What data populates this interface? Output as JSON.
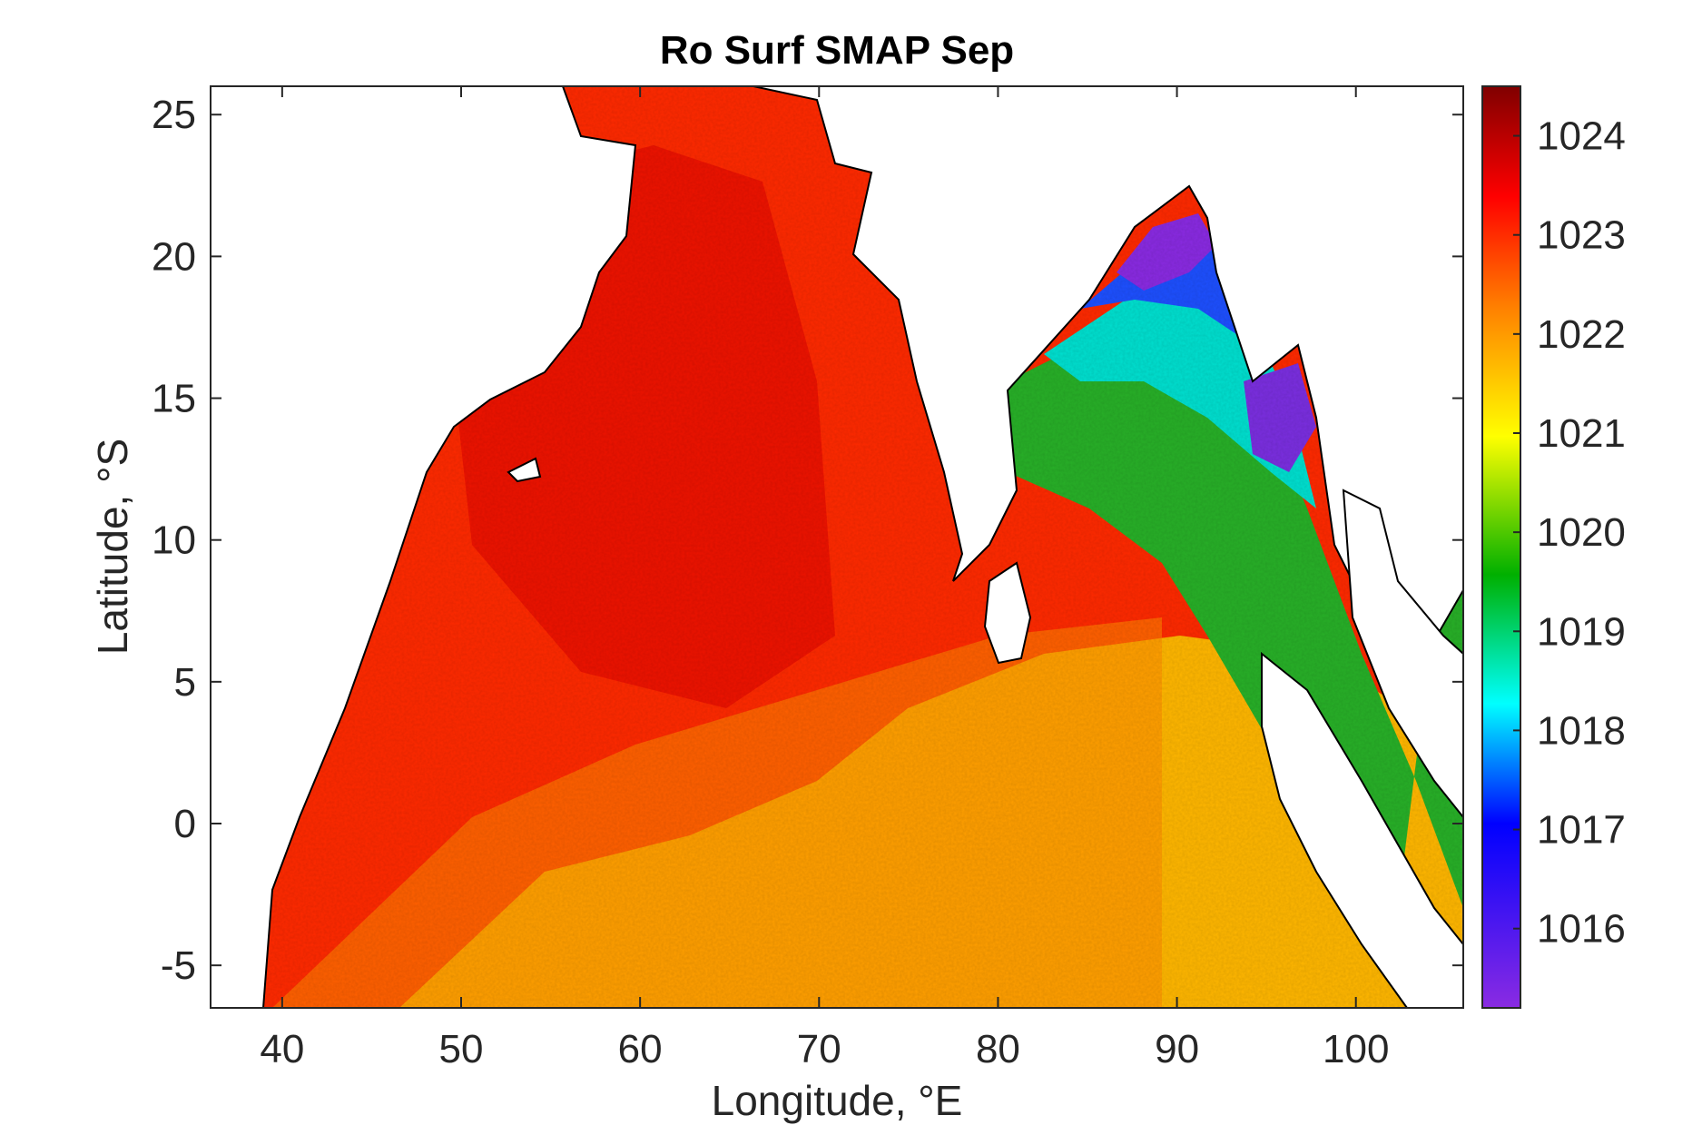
{
  "chart_data": {
    "type": "heatmap",
    "title": "Ro Surf SMAP Sep",
    "xlabel": "Longitude, °E",
    "ylabel": "Latitude, °S",
    "xlim": [
      36,
      106
    ],
    "ylim": [
      -6.5,
      26
    ],
    "x_ticks": [
      40,
      50,
      60,
      70,
      80,
      90,
      100
    ],
    "y_ticks": [
      -5,
      0,
      5,
      10,
      15,
      20,
      25
    ],
    "x_tick_labels": [
      "40",
      "50",
      "60",
      "70",
      "80",
      "90",
      "100"
    ],
    "y_tick_labels": [
      "-5",
      "0",
      "5",
      "10",
      "15",
      "20",
      "25"
    ],
    "colorbar": {
      "range": [
        1015.2,
        1024.5
      ],
      "ticks": [
        1016,
        1017,
        1018,
        1019,
        1020,
        1021,
        1022,
        1023,
        1024
      ],
      "tick_labels": [
        "1016",
        "1017",
        "1018",
        "1019",
        "1020",
        "1021",
        "1022",
        "1023",
        "1024"
      ],
      "colors": [
        "#8a2be2",
        "#0000ff",
        "#00ffff",
        "#00b000",
        "#ffff00",
        "#ff8000",
        "#ff0000",
        "#800000"
      ]
    },
    "colors": {
      "land": "#ffffff",
      "coastline": "#000000",
      "axes": "#262626"
    }
  }
}
